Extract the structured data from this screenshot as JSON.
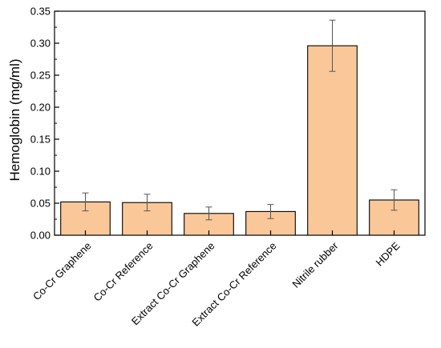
{
  "chart_data": {
    "type": "bar",
    "title": "",
    "xlabel": "",
    "ylabel": "Hemoglobin (mg/ml)",
    "ylim": [
      0,
      0.35
    ],
    "yticks": [
      "0.00",
      "0.05",
      "0.10",
      "0.15",
      "0.20",
      "0.25",
      "0.30",
      "0.35"
    ],
    "categories": [
      "Co-Cr Graphene",
      "Co-Cr Reference",
      "Extract Co-Cr Graphene",
      "Extract Co-Cr Reference",
      "Nitrile rubber",
      "HDPE"
    ],
    "values": [
      0.052,
      0.051,
      0.034,
      0.037,
      0.296,
      0.055
    ],
    "errors": [
      0.014,
      0.013,
      0.01,
      0.011,
      0.04,
      0.016
    ],
    "grid": false,
    "bar_color": "#FAC898",
    "edge_color": "#000000"
  }
}
